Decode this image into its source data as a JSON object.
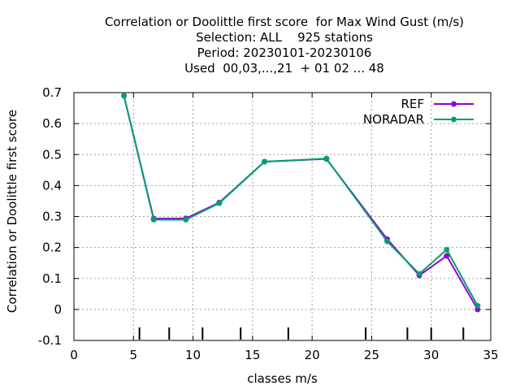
{
  "chart_data": {
    "type": "line",
    "title_lines": [
      "Correlation or Doolittle first score  for Max Wind Gust (m/s)",
      "Selection: ALL    925 stations",
      "Period: 20230101-20230106",
      "Used  00,03,...,21  + 01 02 ... 48"
    ],
    "xlabel": "classes m/s",
    "ylabel": "Correlation or Doolittle first score",
    "xlim": [
      0,
      35
    ],
    "ylim": [
      -0.1,
      0.7
    ],
    "xticks": [
      "0",
      "5",
      "10",
      "15",
      "20",
      "25",
      "30",
      "35"
    ],
    "yticks": [
      "-0.1",
      "0",
      "0.1",
      "0.2",
      "0.3",
      "0.4",
      "0.5",
      "0.6",
      "0.7"
    ],
    "grid": true,
    "legend_position": "top-right",
    "class_bounds": [
      5.5,
      8,
      10.8,
      14,
      18,
      24.5,
      28,
      30,
      32.7
    ],
    "series": [
      {
        "name": "REF",
        "color": "#9400d3",
        "x": [
          4.2,
          6.7,
          9.4,
          12.2,
          16.0,
          21.2,
          26.3,
          29.0,
          31.3,
          33.9
        ],
        "y": [
          0.69,
          0.293,
          0.294,
          0.345,
          0.477,
          0.486,
          0.227,
          0.11,
          0.173,
          0.0
        ]
      },
      {
        "name": "NORADAR",
        "color": "#009e73",
        "x": [
          4.2,
          6.7,
          9.4,
          12.2,
          16.0,
          21.2,
          26.3,
          29.0,
          31.3,
          33.9
        ],
        "y": [
          0.69,
          0.29,
          0.29,
          0.343,
          0.477,
          0.487,
          0.22,
          0.115,
          0.193,
          0.012
        ]
      }
    ]
  }
}
